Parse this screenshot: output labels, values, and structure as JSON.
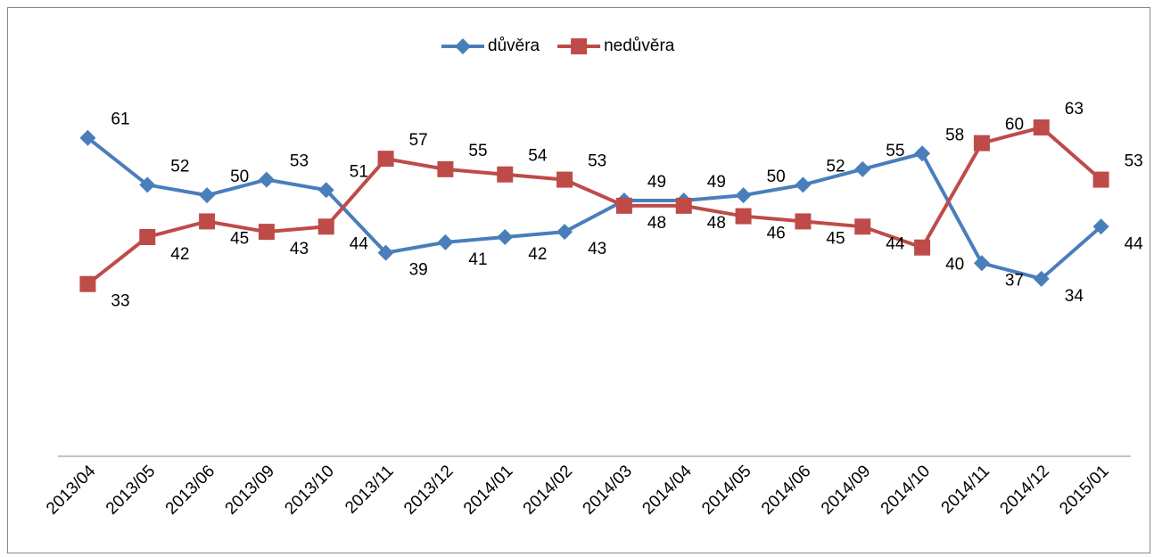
{
  "chart_data": {
    "type": "line",
    "categories": [
      "2013/04",
      "2013/05",
      "2013/06",
      "2013/09",
      "2013/10",
      "2013/11",
      "2013/12",
      "2014/01",
      "2014/02",
      "2014/03",
      "2014/04",
      "2014/05",
      "2014/06",
      "2014/09",
      "2014/10",
      "2014/11",
      "2014/12",
      "2015/01"
    ],
    "series": [
      {
        "name": "důvěra",
        "color": "#4a7ebb",
        "marker": "diamond",
        "values": [
          61,
          52,
          50,
          53,
          51,
          39,
          41,
          42,
          43,
          49,
          49,
          50,
          52,
          55,
          58,
          37,
          34,
          44
        ]
      },
      {
        "name": "nedůvěra",
        "color": "#be4b48",
        "marker": "square",
        "values": [
          33,
          42,
          45,
          43,
          44,
          57,
          55,
          54,
          53,
          48,
          48,
          46,
          45,
          44,
          40,
          60,
          63,
          53
        ]
      }
    ],
    "ylim": [
      0,
      70
    ],
    "legend": "top"
  }
}
